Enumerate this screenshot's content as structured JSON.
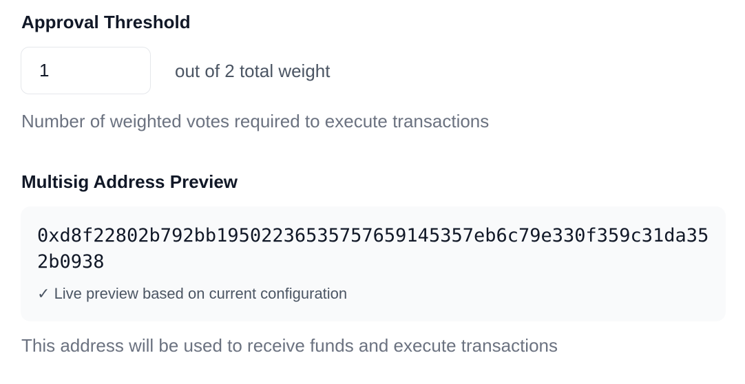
{
  "threshold": {
    "label": "Approval Threshold",
    "value": "1",
    "suffix": "out of 2 total weight",
    "help": "Number of weighted votes required to execute transactions"
  },
  "preview": {
    "label": "Multisig Address Preview",
    "address": "0xd8f22802b792bb19502236535757659145357eb6c79e330f359c31da352b0938",
    "check_icon": "✓",
    "status": "Live preview based on current configuration",
    "help": "This address will be used to receive funds and execute transactions"
  }
}
